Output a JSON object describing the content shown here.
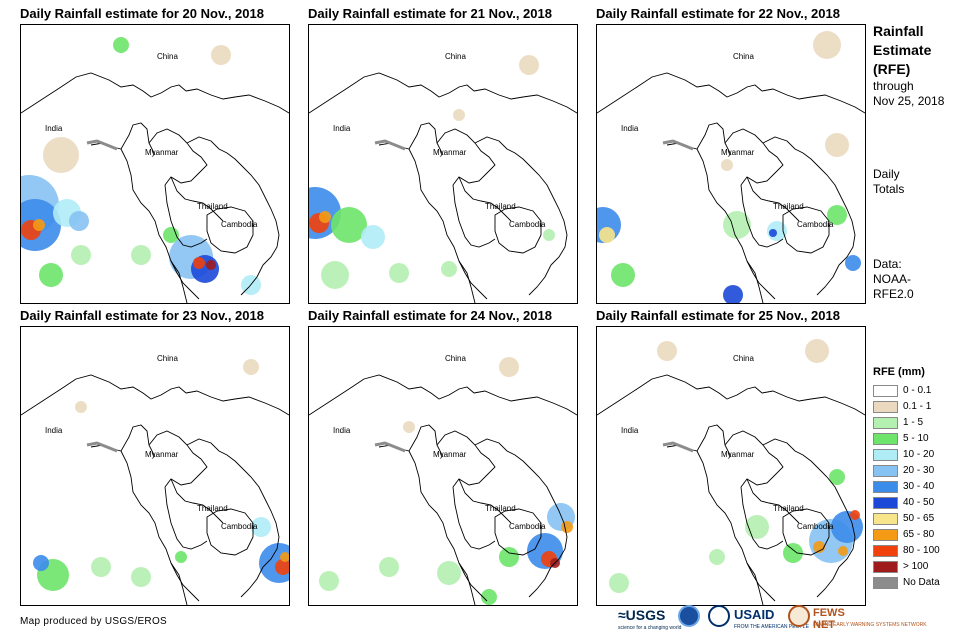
{
  "panels": [
    {
      "title": "Daily Rainfall estimate for 20 Nov., 2018",
      "rain_intensity": "heavy west and south"
    },
    {
      "title": "Daily Rainfall estimate for 21 Nov., 2018",
      "rain_intensity": "heavy west"
    },
    {
      "title": "Daily Rainfall estimate for 22 Nov., 2018",
      "rain_intensity": "moderate west and east"
    },
    {
      "title": "Daily Rainfall estimate for 23 Nov., 2018",
      "rain_intensity": "heavy southeast"
    },
    {
      "title": "Daily Rainfall estimate for 24 Nov., 2018",
      "rain_intensity": "heavy southeast"
    },
    {
      "title": "Daily Rainfall estimate for 25 Nov., 2018",
      "rain_intensity": "heavy southeast"
    }
  ],
  "map_labels": {
    "china": "China",
    "india": "India",
    "myanmar": "Myanmar",
    "thailand": "Thailand",
    "cambodia": "Cambodia"
  },
  "side": {
    "title_line1": "Rainfall",
    "title_line2": "Estimate",
    "title_line3": "(RFE)",
    "through": "through",
    "date": "Nov 25, 2018",
    "daily": "Daily",
    "totals": "Totals",
    "data_label": "Data:",
    "source_line1": "NOAA-",
    "source_line2": "RFE2.0"
  },
  "legend": {
    "title": "RFE (mm)",
    "items": [
      {
        "label": "0 - 0.1",
        "color": "#ffffff"
      },
      {
        "label": "0.1 - 1",
        "color": "#ead9bf"
      },
      {
        "label": "1 - 5",
        "color": "#b4f0b0"
      },
      {
        "label": "5 - 10",
        "color": "#6ee46a"
      },
      {
        "label": "10 - 20",
        "color": "#b0ecf6"
      },
      {
        "label": "20 - 30",
        "color": "#86c2f2"
      },
      {
        "label": "30 - 40",
        "color": "#3c8cea"
      },
      {
        "label": "40 - 50",
        "color": "#1c48d8"
      },
      {
        "label": "50 - 65",
        "color": "#f8e48a"
      },
      {
        "label": "65 - 80",
        "color": "#f49a14"
      },
      {
        "label": "80 - 100",
        "color": "#f0400c"
      },
      {
        "label": "> 100",
        "color": "#a01c1c"
      },
      {
        "label": "No Data",
        "color": "#8c8c8c"
      }
    ]
  },
  "credit": "Map produced by USGS/EROS",
  "logos": {
    "usgs": "≈USGS",
    "usgs_tagline": "science for a changing world",
    "usaid": "USAID",
    "usaid_tagline": "FROM THE AMERICAN PEOPLE",
    "fews": "FEWS NET",
    "fews_tagline": "FAMINE EARLY WARNING SYSTEMS NETWORK"
  }
}
